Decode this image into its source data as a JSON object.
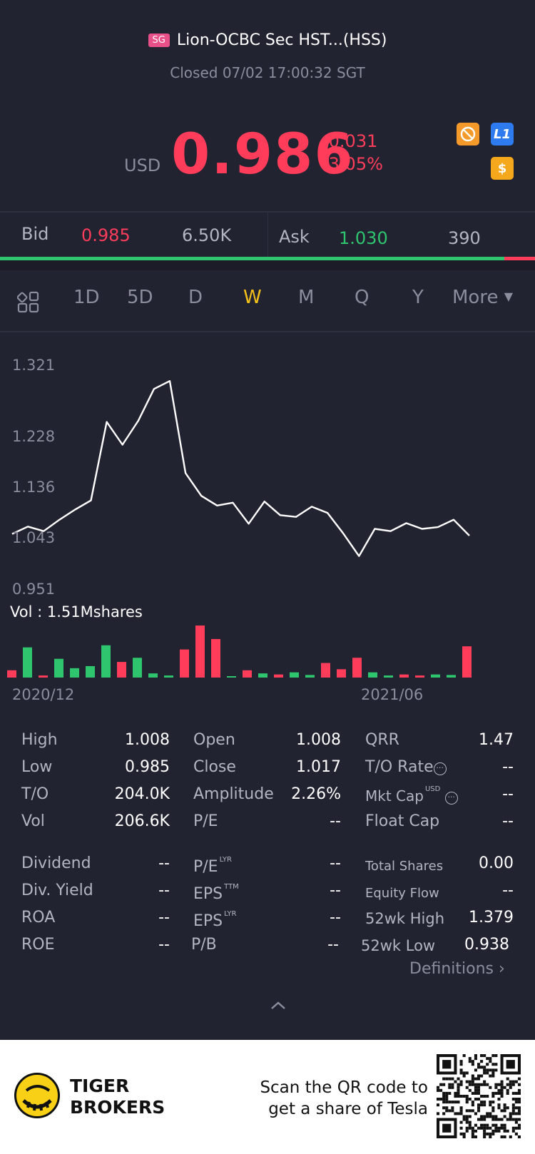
{
  "header": {
    "exchange_badge": "SG",
    "title": "Lion-OCBC Sec HST...(HSS)",
    "status": "Closed 07/02 17:00:32 SGT"
  },
  "quote": {
    "currency": "USD",
    "price": "0.986",
    "change": "-0.031",
    "change_pct": "-3.05%",
    "level_badge": "L1",
    "dollar_badge": "$"
  },
  "order_book": {
    "bid_label": "Bid",
    "bid_price": "0.985",
    "bid_size": "6.50K",
    "ask_label": "Ask",
    "ask_price": "1.030",
    "ask_size": "390",
    "bid_ratio": 0.943
  },
  "tabs": {
    "items": [
      "1D",
      "5D",
      "D",
      "W",
      "M",
      "Q",
      "Y"
    ],
    "more": "More",
    "active": "W"
  },
  "chart_data": {
    "type": "line",
    "y_ticks": [
      "1.321",
      "1.228",
      "1.136",
      "1.043",
      "0.951"
    ],
    "ylim": [
      0.951,
      1.321
    ],
    "x_labels": [
      "2020/12",
      "2021/06"
    ],
    "price": [
      1.043,
      1.056,
      1.048,
      1.068,
      1.086,
      1.102,
      1.24,
      1.2,
      1.242,
      1.298,
      1.312,
      1.15,
      1.11,
      1.093,
      1.098,
      1.061,
      1.1,
      1.076,
      1.073,
      1.091,
      1.08,
      1.044,
      1.004,
      1.052,
      1.048,
      1.062,
      1.052,
      1.055,
      1.068,
      1.04
    ],
    "volume_label": "Vol  : 1.51Mshares",
    "volume": [
      {
        "v": 0.14,
        "c": "red"
      },
      {
        "v": 0.58,
        "c": "green"
      },
      {
        "v": 0.04,
        "c": "red"
      },
      {
        "v": 0.36,
        "c": "green"
      },
      {
        "v": 0.18,
        "c": "green"
      },
      {
        "v": 0.22,
        "c": "green"
      },
      {
        "v": 0.62,
        "c": "green"
      },
      {
        "v": 0.3,
        "c": "red"
      },
      {
        "v": 0.38,
        "c": "green"
      },
      {
        "v": 0.08,
        "c": "green"
      },
      {
        "v": 0.04,
        "c": "green"
      },
      {
        "v": 0.54,
        "c": "red"
      },
      {
        "v": 1.0,
        "c": "red"
      },
      {
        "v": 0.74,
        "c": "red"
      },
      {
        "v": 0.02,
        "c": "green"
      },
      {
        "v": 0.14,
        "c": "red"
      },
      {
        "v": 0.08,
        "c": "green"
      },
      {
        "v": 0.06,
        "c": "red"
      },
      {
        "v": 0.1,
        "c": "green"
      },
      {
        "v": 0.05,
        "c": "green"
      },
      {
        "v": 0.28,
        "c": "red"
      },
      {
        "v": 0.16,
        "c": "red"
      },
      {
        "v": 0.38,
        "c": "red"
      },
      {
        "v": 0.1,
        "c": "green"
      },
      {
        "v": 0.04,
        "c": "green"
      },
      {
        "v": 0.06,
        "c": "red"
      },
      {
        "v": 0.04,
        "c": "red"
      },
      {
        "v": 0.06,
        "c": "green"
      },
      {
        "v": 0.05,
        "c": "green"
      },
      {
        "v": 0.6,
        "c": "red"
      }
    ]
  },
  "stats": {
    "high_label": "High",
    "high": "1.008",
    "low_label": "Low",
    "low": "0.985",
    "to_label": "T/O",
    "to": "204.0K",
    "vol_label": "Vol",
    "vol": "206.6K",
    "open_label": "Open",
    "open": "1.008",
    "close_label": "Close",
    "close": "1.017",
    "amp_label": "Amplitude",
    "amp": "2.26%",
    "pe_label": "P/E",
    "pe": "--",
    "qrr_label": "QRR",
    "qrr": "1.47",
    "torate_label": "T/O Rate",
    "torate": "--",
    "mktcap_label": "Mkt Cap",
    "mktcap_sup": "USD",
    "mktcap": "--",
    "float_label": "Float Cap",
    "float": "--",
    "div_label": "Dividend",
    "div": "--",
    "divy_label": "Div. Yield",
    "divy": "--",
    "roa_label": "ROA",
    "roa": "--",
    "roe_label": "ROE",
    "roe": "--",
    "pelyr_label": "P/E",
    "pelyr_sup": "LYR",
    "pelyr": "--",
    "epsttm_label": "EPS",
    "epsttm_sup": "TTM",
    "epsttm": "--",
    "epslyr_label": "EPS",
    "epslyr_sup": "LYR",
    "epslyr": "--",
    "pb_label": "P/B",
    "pb": "--",
    "shares_label": "Total Shares",
    "shares": "0.00",
    "equity_label": "Equity Flow",
    "equity": "--",
    "high52_label": "52wk High",
    "high52": "1.379",
    "low52_label": "52wk Low",
    "low52": "0.938",
    "definitions": "Definitions"
  },
  "footer": {
    "brand_line1": "TIGER",
    "brand_line2": "BROKERS",
    "scan_line1": "Scan the QR code to",
    "scan_line2": "get a share of Tesla"
  },
  "colors": {
    "up": "#2fc56e",
    "down": "#ff3d5a",
    "accent": "#f5c21a"
  }
}
